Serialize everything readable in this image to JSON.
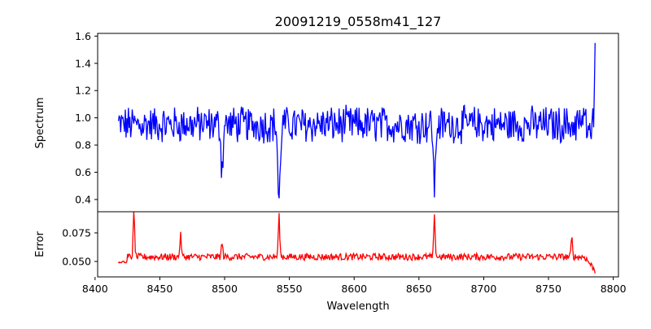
{
  "figure": {
    "title": "20091219_0558m41_127"
  },
  "chart_data": [
    {
      "type": "line",
      "panel": "top",
      "title": "20091219_0558m41_127",
      "xlabel": "",
      "ylabel": "Spectrum",
      "xlim": [
        8402,
        8804
      ],
      "ylim": [
        0.31,
        1.62
      ],
      "xticks": [
        8400,
        8450,
        8500,
        8550,
        8600,
        8650,
        8700,
        8750,
        8800
      ],
      "yticks": [
        0.4,
        0.6,
        0.8,
        1.0,
        1.2,
        1.4,
        1.6
      ],
      "ytick_labels": [
        "0.4",
        "0.6",
        "0.8",
        "1.0",
        "1.2",
        "1.4",
        "1.6"
      ],
      "grid": false,
      "series": [
        {
          "name": "spectrum",
          "color": "#0000ff",
          "x_start": 8418,
          "x_end": 8786,
          "features": [
            {
              "center": 8498,
              "value": 0.62
            },
            {
              "center": 8542,
              "value": 0.37
            },
            {
              "center": 8662,
              "value": 0.47
            }
          ],
          "end_value": 1.55,
          "continuum": 0.95
        }
      ]
    },
    {
      "type": "line",
      "panel": "bottom",
      "xlabel": "Wavelength",
      "ylabel": "Error",
      "xlim": [
        8402,
        8804
      ],
      "ylim": [
        0.0365,
        0.0935
      ],
      "xticks": [
        8400,
        8450,
        8500,
        8550,
        8600,
        8650,
        8700,
        8750,
        8800
      ],
      "xtick_labels": [
        "8400",
        "8450",
        "8500",
        "8550",
        "8600",
        "8650",
        "8700",
        "8750",
        "8800"
      ],
      "yticks": [
        0.05,
        0.075
      ],
      "ytick_labels": [
        "0.050",
        "0.075"
      ],
      "grid": false,
      "series": [
        {
          "name": "error",
          "color": "#ff0000",
          "x_start": 8418,
          "x_end": 8786,
          "baseline": 0.054,
          "peaks": [
            {
              "center": 8430,
              "value": 0.0925
            },
            {
              "center": 8466,
              "value": 0.073
            },
            {
              "center": 8498,
              "value": 0.066
            },
            {
              "center": 8542,
              "value": 0.0895
            },
            {
              "center": 8662,
              "value": 0.0885
            },
            {
              "center": 8768,
              "value": 0.07
            }
          ],
          "end_value": 0.0395
        }
      ]
    }
  ]
}
